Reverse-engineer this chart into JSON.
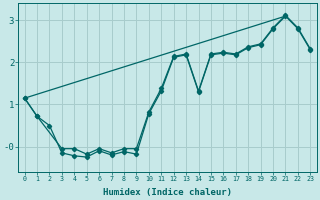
{
  "xlabel": "Humidex (Indice chaleur)",
  "xlim": [
    -0.5,
    23.5
  ],
  "ylim": [
    -0.6,
    3.4
  ],
  "background_color": "#c8e8e8",
  "grid_color": "#a8cccc",
  "line_color": "#006666",
  "tick_color": "#006666",
  "xticks": [
    0,
    1,
    2,
    3,
    4,
    5,
    6,
    7,
    8,
    9,
    10,
    11,
    12,
    13,
    14,
    15,
    16,
    17,
    18,
    19,
    20,
    21,
    22,
    23
  ],
  "yticks": [
    0,
    1,
    2,
    3
  ],
  "ytick_labels": [
    "-0",
    "1",
    "2",
    "3"
  ],
  "line1_x": [
    0,
    1,
    2,
    3,
    4,
    5,
    6,
    7,
    8,
    9,
    10,
    11,
    12,
    13,
    14,
    15,
    16,
    17,
    18,
    19,
    20,
    21,
    22,
    23
  ],
  "line1_y": [
    1.15,
    0.72,
    0.5,
    -0.15,
    -0.22,
    -0.25,
    -0.1,
    -0.2,
    -0.12,
    -0.18,
    0.78,
    1.32,
    2.12,
    2.18,
    1.3,
    2.18,
    2.22,
    2.18,
    2.35,
    2.42,
    2.8,
    3.1,
    2.8,
    2.3
  ],
  "line2_x": [
    0,
    1,
    3,
    4,
    5,
    6,
    7,
    8,
    9,
    10,
    11,
    12,
    13,
    14,
    15,
    16,
    17,
    18,
    19,
    20,
    21,
    22,
    23
  ],
  "line2_y": [
    1.15,
    0.72,
    -0.05,
    -0.05,
    -0.18,
    -0.05,
    -0.15,
    -0.05,
    -0.05,
    0.82,
    1.38,
    2.14,
    2.2,
    1.32,
    2.2,
    2.24,
    2.2,
    2.37,
    2.44,
    2.82,
    3.12,
    2.82,
    2.32
  ],
  "line3_x": [
    0,
    21
  ],
  "line3_y": [
    1.15,
    3.1
  ]
}
